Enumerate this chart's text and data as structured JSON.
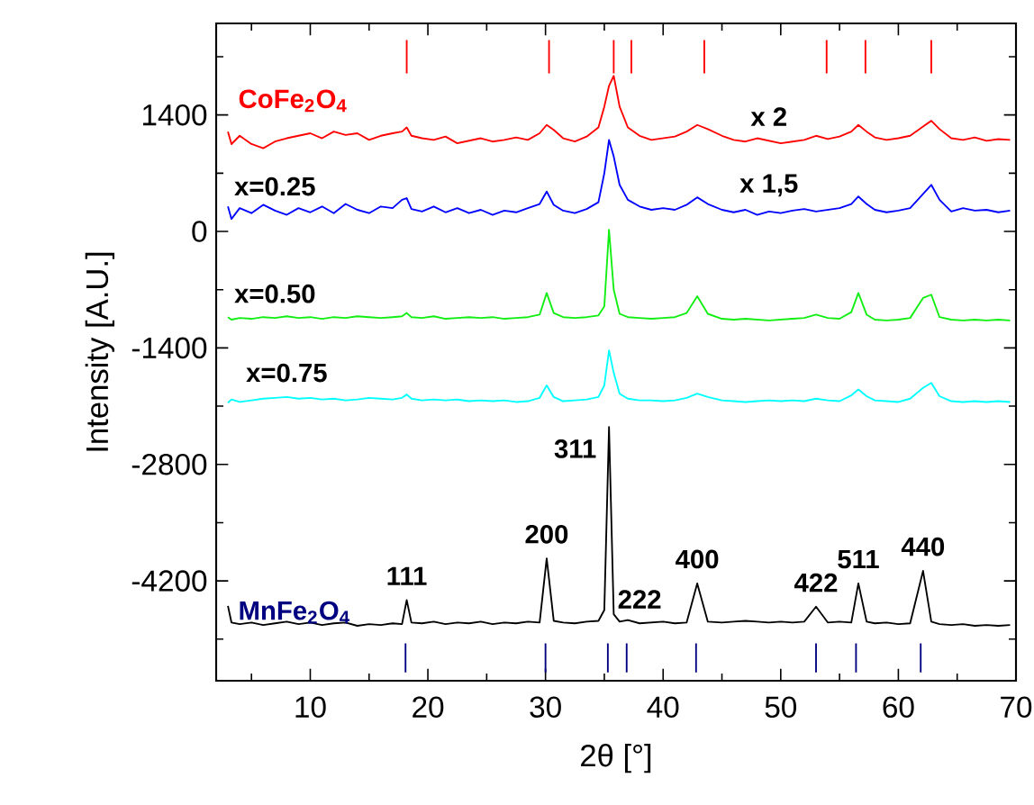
{
  "chart_data": {
    "type": "line",
    "xlabel": "2θ [°]",
    "ylabel": "Intensity [A.U.]",
    "xlim": [
      2,
      70
    ],
    "ylim": [
      -5400,
      2500
    ],
    "xticks": [
      10,
      20,
      30,
      40,
      50,
      60,
      70
    ],
    "yticks": [
      -4200,
      -2800,
      -1400,
      0,
      1400
    ],
    "x": [
      3,
      3.3,
      4,
      5,
      6,
      7,
      8,
      9,
      10,
      11,
      12,
      13,
      14,
      15,
      16,
      17,
      17.8,
      18.2,
      18.6,
      19.5,
      20.5,
      21.5,
      22.5,
      23.5,
      24.5,
      25.5,
      26.5,
      27.5,
      28.5,
      29.5,
      30.1,
      30.7,
      31.5,
      32.5,
      33.5,
      34.5,
      35,
      35.4,
      35.8,
      36.3,
      37,
      38,
      39,
      40,
      41,
      42,
      42.9,
      43.8,
      45,
      46,
      47,
      48,
      49,
      50,
      51,
      52,
      53,
      54,
      55,
      56,
      56.6,
      57.3,
      58,
      59,
      60,
      61,
      62.1,
      62.8,
      63.5,
      64.5,
      65.5,
      66.5,
      67.5,
      68.5,
      69.5
    ],
    "series": [
      {
        "name": "CoFe$_{2}$O$_{4}$",
        "color": "#ff0000",
        "values": [
          1200,
          1050,
          1150,
          1050,
          1000,
          1080,
          1120,
          1150,
          1180,
          1120,
          1200,
          1160,
          1180,
          1100,
          1150,
          1180,
          1200,
          1250,
          1150,
          1120,
          1100,
          1140,
          1060,
          1090,
          1120,
          1080,
          1100,
          1130,
          1100,
          1180,
          1280,
          1220,
          1120,
          1080,
          1140,
          1250,
          1500,
          1750,
          1870,
          1500,
          1250,
          1150,
          1100,
          1120,
          1140,
          1200,
          1280,
          1230,
          1150,
          1100,
          1080,
          1120,
          1090,
          1060,
          1080,
          1100,
          1150,
          1110,
          1140,
          1200,
          1280,
          1200,
          1130,
          1100,
          1120,
          1150,
          1260,
          1330,
          1230,
          1120,
          1100,
          1130,
          1090,
          1110,
          1100
        ]
      },
      {
        "color": "#0000ff",
        "values": [
          300,
          150,
          280,
          220,
          320,
          250,
          200,
          280,
          230,
          300,
          220,
          330,
          260,
          220,
          300,
          280,
          380,
          400,
          270,
          240,
          300,
          230,
          280,
          220,
          260,
          200,
          250,
          230,
          280,
          330,
          480,
          320,
          250,
          220,
          270,
          350,
          700,
          1100,
          900,
          560,
          380,
          300,
          260,
          280,
          260,
          320,
          410,
          330,
          260,
          230,
          260,
          200,
          240,
          220,
          250,
          270,
          240,
          260,
          280,
          330,
          420,
          330,
          260,
          230,
          250,
          280,
          450,
          560,
          380,
          240,
          280,
          250,
          260,
          230,
          250
        ]
      },
      {
        "color": "#11ee11",
        "values": [
          -1030,
          -1060,
          -1040,
          -1050,
          -1030,
          -1040,
          -1020,
          -1040,
          -1030,
          -1050,
          -1030,
          -1040,
          -1020,
          -1030,
          -1040,
          -1030,
          -1020,
          -980,
          -1030,
          -1040,
          -1020,
          -1050,
          -1040,
          -1030,
          -1040,
          -1030,
          -1050,
          -1040,
          -1030,
          -1000,
          -740,
          -980,
          -1030,
          -1040,
          -1030,
          -1010,
          -900,
          20,
          -700,
          -990,
          -1030,
          -1040,
          -1050,
          -1040,
          -1030,
          -980,
          -780,
          -990,
          -1050,
          -1060,
          -1050,
          -1060,
          -1070,
          -1060,
          -1050,
          -1040,
          -1000,
          -1040,
          -1050,
          -970,
          -740,
          -1000,
          -1060,
          -1070,
          -1060,
          -1040,
          -800,
          -760,
          -1030,
          -1060,
          -1070,
          -1060,
          -1070,
          -1060,
          -1070
        ]
      },
      {
        "color": "#00ffff",
        "values": [
          -2060,
          -2020,
          -2050,
          -2030,
          -2010,
          -2000,
          -1990,
          -2010,
          -2000,
          -2020,
          -2010,
          -2030,
          -2020,
          -2000,
          -2010,
          -2020,
          -2000,
          -1960,
          -2010,
          -2030,
          -2020,
          -2030,
          -2020,
          -2040,
          -2030,
          -2040,
          -2030,
          -2050,
          -2040,
          -2000,
          -1850,
          -1990,
          -2040,
          -2030,
          -2020,
          -1990,
          -1850,
          -1430,
          -1700,
          -1950,
          -2010,
          -2030,
          -2030,
          -2040,
          -2030,
          -2000,
          -1950,
          -1990,
          -2030,
          -2040,
          -2050,
          -2040,
          -2030,
          -2040,
          -2030,
          -2040,
          -2010,
          -2030,
          -2040,
          -1970,
          -1900,
          -1980,
          -2030,
          -2040,
          -2050,
          -2010,
          -1880,
          -1820,
          -1980,
          -2040,
          -2050,
          -2040,
          -2050,
          -2040,
          -2050
        ]
      },
      {
        "color": "#000000",
        "values": [
          -4500,
          -4700,
          -4720,
          -4700,
          -4730,
          -4710,
          -4690,
          -4720,
          -4700,
          -4730,
          -4710,
          -4700,
          -4740,
          -4720,
          -4730,
          -4710,
          -4720,
          -4430,
          -4700,
          -4710,
          -4690,
          -4720,
          -4700,
          -4710,
          -4690,
          -4720,
          -4700,
          -4710,
          -4690,
          -4700,
          -3930,
          -4680,
          -4700,
          -4710,
          -4690,
          -4680,
          -4550,
          -2350,
          -4600,
          -4690,
          -4670,
          -4710,
          -4700,
          -4690,
          -4710,
          -4700,
          -4230,
          -4690,
          -4700,
          -4690,
          -4680,
          -4690,
          -4700,
          -4690,
          -4700,
          -4690,
          -4510,
          -4700,
          -4690,
          -4700,
          -4230,
          -4690,
          -4710,
          -4700,
          -4720,
          -4710,
          -4080,
          -4690,
          -4720,
          -4730,
          -4720,
          -4740,
          -4730,
          -4740,
          -4730
        ]
      },
      {
        "color": "#ff0000",
        "x": [
          18.2,
          18.2,
          null,
          30.3,
          30.3,
          null,
          35.8,
          35.8,
          null,
          37.3,
          37.3,
          null,
          43.5,
          43.5,
          null,
          53.9,
          53.9,
          null,
          57.2,
          57.2,
          null,
          62.8,
          62.8
        ],
        "values": [
          1900,
          2300,
          null,
          1900,
          2300,
          null,
          1900,
          2300,
          null,
          1900,
          2300,
          null,
          1900,
          2300,
          null,
          1900,
          2300,
          null,
          1900,
          2300,
          null,
          1900,
          2300
        ]
      },
      {
        "name": "MnFe$_{2}$O$_{4}$",
        "color": "#000080",
        "x": [
          18.1,
          18.1,
          null,
          30.0,
          30.0,
          null,
          35.3,
          35.3,
          null,
          36.9,
          36.9,
          null,
          42.8,
          42.8,
          null,
          53.0,
          53.0,
          null,
          56.4,
          56.4,
          null,
          61.9,
          61.9
        ],
        "values": [
          -4950,
          -5300,
          null,
          -4950,
          -5300,
          null,
          -4950,
          -5300,
          null,
          -4950,
          -5300,
          null,
          -4950,
          -5300,
          null,
          -4950,
          -5300,
          null,
          -4950,
          -5300,
          null,
          -4950,
          -5300
        ]
      }
    ],
    "annotations": [
      {
        "text": "x=0.25",
        "x": 7,
        "y": 250
      },
      {
        "text": "x=0.50",
        "x": 7,
        "y": -1040
      },
      {
        "text": "x=0.75",
        "x": 8,
        "y": -1990
      },
      {
        "text": "x 2",
        "x": 49,
        "y": 1090
      },
      {
        "text": "x 1,5",
        "x": 49,
        "y": 240
      },
      {
        "text": "111",
        "x": 18.2,
        "y": -4430
      },
      {
        "text": "200",
        "x": 30.1,
        "y": -3930
      },
      {
        "text": "311",
        "x": 35.4,
        "y": -2350
      },
      {
        "text": "222",
        "x": 38,
        "y": -4710
      },
      {
        "text": "400",
        "x": 42.9,
        "y": -4230
      },
      {
        "text": "422",
        "x": 53,
        "y": -4510
      },
      {
        "text": "511",
        "x": 56.6,
        "y": -4230
      },
      {
        "text": "440",
        "x": 62.1,
        "y": -4080
      }
    ]
  }
}
